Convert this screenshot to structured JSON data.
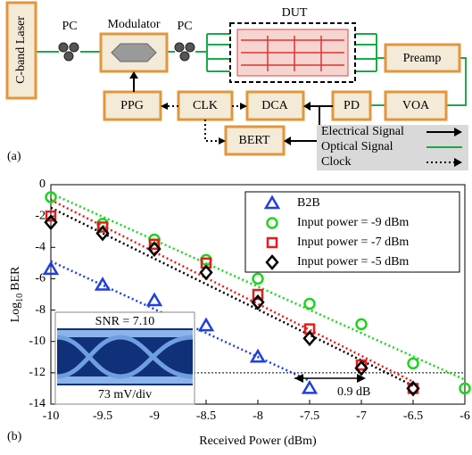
{
  "diagram": {
    "label": "(a)",
    "nodes": {
      "laser": "C-band Laser",
      "pc1": "PC",
      "modulator": "Modulator",
      "pc2": "PC",
      "dut": "DUT",
      "preamp": "Preamp",
      "voa": "VOA",
      "pd": "PD",
      "dca": "DCA",
      "clk": "CLK",
      "ppg": "PPG",
      "bert": "BERT"
    },
    "legend": [
      "Electrical Signal",
      "Optical Signal",
      "Clock"
    ]
  },
  "chart_label": "(b)",
  "chart_data": {
    "type": "scatter",
    "xlabel": "Received Power (dBm)",
    "ylabel": [
      "Log",
      "10",
      "BER"
    ],
    "xlim": [
      -10,
      -6
    ],
    "xticks": [
      -10,
      -9.5,
      -9,
      -8.5,
      -8,
      -7.5,
      -7,
      -6.5,
      -6
    ],
    "ylim": [
      -14,
      0
    ],
    "yticks": [
      0,
      -2,
      -4,
      -6,
      -8,
      -10,
      -12,
      -14
    ],
    "legend": "upper right",
    "threshold": -12,
    "series": [
      {
        "name": "B2B",
        "color": "#1f3fe0",
        "marker": "triangle",
        "x": [
          -10,
          -9.5,
          -9,
          -8.5,
          -8,
          -7.5
        ],
        "values": [
          -5.4,
          -6.4,
          -7.4,
          -9.0,
          -11.0,
          -13.0
        ]
      },
      {
        "name": "Input power = -9 dBm",
        "color": "#1ed41e",
        "marker": "circle",
        "x": [
          -10,
          -9.5,
          -9,
          -8.5,
          -8,
          -7.5,
          -7,
          -6.5,
          -6
        ],
        "values": [
          -0.8,
          -2.5,
          -3.5,
          -4.8,
          -6.0,
          -7.6,
          -8.9,
          -11.4,
          -13.0
        ]
      },
      {
        "name": "Input power = -7 dBm",
        "color": "#e41c1c",
        "marker": "square",
        "x": [
          -10,
          -9.5,
          -9,
          -8.5,
          -8,
          -7.5,
          -7,
          -6.5
        ],
        "values": [
          -2.0,
          -2.7,
          -3.8,
          -5.0,
          -7.0,
          -9.2,
          -11.5,
          -13.0
        ]
      },
      {
        "name": "Input power = -5 dBm",
        "color": "#000000",
        "marker": "diamond",
        "x": [
          -10,
          -9.5,
          -9,
          -8.5,
          -8,
          -7.5,
          -7,
          -6.5
        ],
        "values": [
          -2.4,
          -3.1,
          -4.1,
          -5.6,
          -7.5,
          -9.8,
          -11.7,
          -13.0
        ]
      }
    ],
    "annotations": {
      "shift": "0.9 dB",
      "snr": "SNR = 7.10",
      "scale": "73 mV/div"
    }
  }
}
